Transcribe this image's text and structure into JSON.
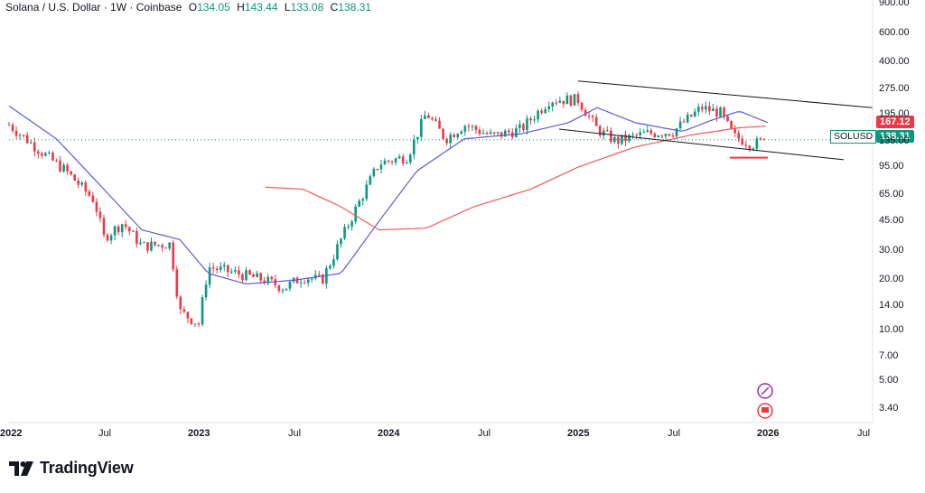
{
  "legend": {
    "symbol": "Solana / U.S. Dollar · 1W · Coinbase",
    "open_label": "O",
    "open": "134.05",
    "high_label": "H",
    "high": "143.44",
    "low_label": "L",
    "low": "133.08",
    "close_label": "C",
    "close": "138.31"
  },
  "chart_data": {
    "type": "candlestick",
    "title": "Solana / U.S. Dollar · 1W · Coinbase",
    "scale": "log",
    "ylim": [
      3.0,
      940
    ],
    "y_ticks": [
      "900.00",
      "600.00",
      "400.00",
      "275.00",
      "195.00",
      "135.00",
      "95.00",
      "65.00",
      "45.00",
      "30.00",
      "20.00",
      "14.00",
      "10.00",
      "7.00",
      "5.00",
      "3.40"
    ],
    "x_ticks": [
      "2022",
      "Jul",
      "2023",
      "Jul",
      "2024",
      "Jul",
      "2025",
      "Jul",
      "2026",
      "Jul"
    ],
    "last_price": {
      "symbol": "SOLUSD",
      "value": "138.31",
      "color": "#089981"
    },
    "ma_marker": {
      "value": "167.12",
      "color": "#f23645"
    },
    "series_keyframes": [
      {
        "t": 0.0,
        "close": 170
      },
      {
        "t": 0.2,
        "close": 110
      },
      {
        "t": 0.3,
        "close": 90
      },
      {
        "t": 0.45,
        "close": 60
      },
      {
        "t": 0.5,
        "close": 36
      },
      {
        "t": 0.6,
        "close": 44
      },
      {
        "t": 0.7,
        "close": 32
      },
      {
        "t": 0.85,
        "close": 33
      },
      {
        "t": 0.9,
        "close": 13
      },
      {
        "t": 1.0,
        "close": 11
      },
      {
        "t": 1.05,
        "close": 24
      },
      {
        "t": 1.2,
        "close": 22
      },
      {
        "t": 1.35,
        "close": 20
      },
      {
        "t": 1.45,
        "close": 18
      },
      {
        "t": 1.55,
        "close": 21
      },
      {
        "t": 1.65,
        "close": 20
      },
      {
        "t": 1.75,
        "close": 35
      },
      {
        "t": 1.85,
        "close": 60
      },
      {
        "t": 1.95,
        "close": 100
      },
      {
        "t": 2.1,
        "close": 110
      },
      {
        "t": 2.2,
        "close": 200
      },
      {
        "t": 2.3,
        "close": 140
      },
      {
        "t": 2.4,
        "close": 170
      },
      {
        "t": 2.55,
        "close": 145
      },
      {
        "t": 2.7,
        "close": 160
      },
      {
        "t": 2.85,
        "close": 240
      },
      {
        "t": 3.0,
        "close": 240
      },
      {
        "t": 3.1,
        "close": 160
      },
      {
        "t": 3.2,
        "close": 135
      },
      {
        "t": 3.35,
        "close": 150
      },
      {
        "t": 3.5,
        "close": 155
      },
      {
        "t": 3.65,
        "close": 215
      },
      {
        "t": 3.75,
        "close": 200
      },
      {
        "t": 3.82,
        "close": 145
      },
      {
        "t": 3.92,
        "close": 130
      },
      {
        "t": 4.0,
        "close": 138
      }
    ],
    "sma_blue": [
      {
        "t": 0.0,
        "v": 220
      },
      {
        "t": 0.25,
        "v": 140
      },
      {
        "t": 0.5,
        "v": 70
      },
      {
        "t": 0.7,
        "v": 40
      },
      {
        "t": 0.9,
        "v": 35
      },
      {
        "t": 1.05,
        "v": 22
      },
      {
        "t": 1.25,
        "v": 19
      },
      {
        "t": 1.5,
        "v": 20
      },
      {
        "t": 1.75,
        "v": 22
      },
      {
        "t": 1.95,
        "v": 45
      },
      {
        "t": 2.15,
        "v": 90
      },
      {
        "t": 2.4,
        "v": 140
      },
      {
        "t": 2.7,
        "v": 150
      },
      {
        "t": 2.95,
        "v": 175
      },
      {
        "t": 3.1,
        "v": 215
      },
      {
        "t": 3.3,
        "v": 175
      },
      {
        "t": 3.55,
        "v": 155
      },
      {
        "t": 3.7,
        "v": 180
      },
      {
        "t": 3.85,
        "v": 205
      },
      {
        "t": 4.0,
        "v": 175
      }
    ],
    "sma_red": [
      {
        "t": 1.35,
        "v": 72
      },
      {
        "t": 1.55,
        "v": 70
      },
      {
        "t": 1.75,
        "v": 55
      },
      {
        "t": 1.95,
        "v": 40
      },
      {
        "t": 2.2,
        "v": 41
      },
      {
        "t": 2.45,
        "v": 55
      },
      {
        "t": 2.75,
        "v": 70
      },
      {
        "t": 3.0,
        "v": 95
      },
      {
        "t": 3.3,
        "v": 125
      },
      {
        "t": 3.6,
        "v": 148
      },
      {
        "t": 3.85,
        "v": 163
      },
      {
        "t": 4.0,
        "v": 167
      }
    ],
    "trendlines": [
      {
        "t1": 3.0,
        "v1": 310,
        "t2": 4.55,
        "v2": 215,
        "color": "#131722"
      },
      {
        "t1": 2.9,
        "v1": 160,
        "t2": 4.4,
        "v2": 105,
        "color": "#131722"
      },
      {
        "t1": 3.8,
        "v1": 108,
        "t2": 4.0,
        "v2": 108,
        "color": "#f23645"
      }
    ]
  },
  "axis": {
    "y_labels": [
      "900.00",
      "600.00",
      "400.00",
      "275.00",
      "195.00",
      "135.00",
      "95.00",
      "65.00",
      "45.00",
      "30.00",
      "20.00",
      "14.00",
      "10.00",
      "7.00",
      "5.00",
      "3.40"
    ],
    "x_labels": [
      "2022",
      "Jul",
      "2023",
      "Jul",
      "2024",
      "Jul",
      "2025",
      "Jul",
      "2026",
      "Jul"
    ]
  },
  "price_tags": {
    "ma_value": "167.12",
    "symbol": "SOLUSD",
    "last_value": "138.31"
  },
  "footer": {
    "brand": "TradingView"
  },
  "colors": {
    "up": "#089981",
    "down": "#f23645",
    "sma_blue": "#5b5bd6",
    "sma_red": "#f25a5a"
  }
}
